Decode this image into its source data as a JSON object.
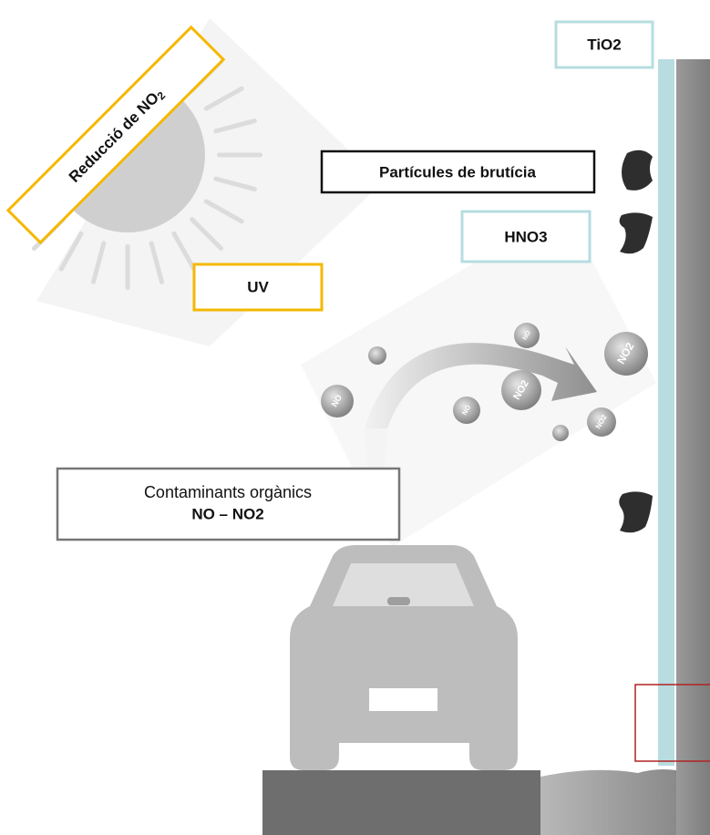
{
  "title": {
    "text": "Reducció de NO",
    "sub": "2"
  },
  "labels": {
    "tio2": "TiO2",
    "dirt": "Partícules de brutícia",
    "hno3": "HNO3",
    "uv": "UV",
    "pollutants": {
      "line1": "Contaminants orgànics",
      "line2": "NO – NO2"
    }
  },
  "molecules": [
    "NO",
    "NO",
    "NO2",
    "NO2",
    "NO",
    "NO2"
  ]
}
